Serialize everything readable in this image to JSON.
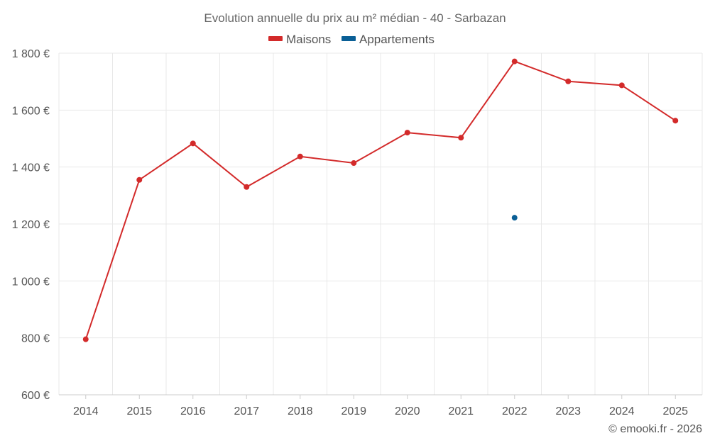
{
  "chart_data": {
    "type": "line",
    "title": "Evolution annuelle du prix au m² médian - 40 - Sarbazan",
    "categories": [
      "2014",
      "2015",
      "2016",
      "2017",
      "2018",
      "2019",
      "2020",
      "2021",
      "2022",
      "2023",
      "2024",
      "2025"
    ],
    "ylim": [
      600,
      1800
    ],
    "yticks": [
      600,
      800,
      1000,
      1200,
      1400,
      1600,
      1800
    ],
    "ytick_labels": [
      "600 €",
      "800 €",
      "1 000 €",
      "1 200 €",
      "1 400 €",
      "1 600 €",
      "1 800 €"
    ],
    "legend_position": "top-center",
    "grid": true,
    "series": [
      {
        "name": "Maisons",
        "color": "#d32a2a",
        "values": [
          795,
          1355,
          1483,
          1330,
          1437,
          1414,
          1521,
          1503,
          1771,
          1701,
          1687,
          1563
        ]
      },
      {
        "name": "Appartements",
        "color": "#0a5f96",
        "values": [
          null,
          null,
          null,
          null,
          null,
          null,
          null,
          null,
          1222,
          null,
          null,
          null
        ]
      }
    ],
    "credit": "© emooki.fr - 2026"
  }
}
